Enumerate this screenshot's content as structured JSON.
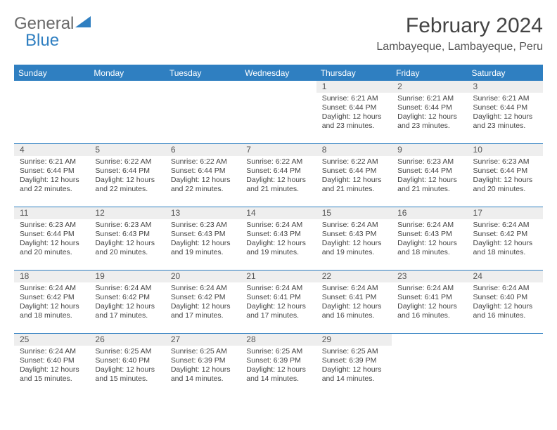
{
  "logo": {
    "part1": "General",
    "part2": "Blue"
  },
  "title": "February 2024",
  "location": "Lambayeque, Lambayeque, Peru",
  "colors": {
    "header_bg": "#2f7fc1",
    "header_text": "#ffffff",
    "daynum_bg": "#eeeeee",
    "border": "#2f7fc1",
    "text": "#444444"
  },
  "day_headers": [
    "Sunday",
    "Monday",
    "Tuesday",
    "Wednesday",
    "Thursday",
    "Friday",
    "Saturday"
  ],
  "weeks": [
    [
      {
        "n": "",
        "sr": "",
        "ss": "",
        "dl": ""
      },
      {
        "n": "",
        "sr": "",
        "ss": "",
        "dl": ""
      },
      {
        "n": "",
        "sr": "",
        "ss": "",
        "dl": ""
      },
      {
        "n": "",
        "sr": "",
        "ss": "",
        "dl": ""
      },
      {
        "n": "1",
        "sr": "Sunrise: 6:21 AM",
        "ss": "Sunset: 6:44 PM",
        "dl": "Daylight: 12 hours and 23 minutes."
      },
      {
        "n": "2",
        "sr": "Sunrise: 6:21 AM",
        "ss": "Sunset: 6:44 PM",
        "dl": "Daylight: 12 hours and 23 minutes."
      },
      {
        "n": "3",
        "sr": "Sunrise: 6:21 AM",
        "ss": "Sunset: 6:44 PM",
        "dl": "Daylight: 12 hours and 23 minutes."
      }
    ],
    [
      {
        "n": "4",
        "sr": "Sunrise: 6:21 AM",
        "ss": "Sunset: 6:44 PM",
        "dl": "Daylight: 12 hours and 22 minutes."
      },
      {
        "n": "5",
        "sr": "Sunrise: 6:22 AM",
        "ss": "Sunset: 6:44 PM",
        "dl": "Daylight: 12 hours and 22 minutes."
      },
      {
        "n": "6",
        "sr": "Sunrise: 6:22 AM",
        "ss": "Sunset: 6:44 PM",
        "dl": "Daylight: 12 hours and 22 minutes."
      },
      {
        "n": "7",
        "sr": "Sunrise: 6:22 AM",
        "ss": "Sunset: 6:44 PM",
        "dl": "Daylight: 12 hours and 21 minutes."
      },
      {
        "n": "8",
        "sr": "Sunrise: 6:22 AM",
        "ss": "Sunset: 6:44 PM",
        "dl": "Daylight: 12 hours and 21 minutes."
      },
      {
        "n": "9",
        "sr": "Sunrise: 6:23 AM",
        "ss": "Sunset: 6:44 PM",
        "dl": "Daylight: 12 hours and 21 minutes."
      },
      {
        "n": "10",
        "sr": "Sunrise: 6:23 AM",
        "ss": "Sunset: 6:44 PM",
        "dl": "Daylight: 12 hours and 20 minutes."
      }
    ],
    [
      {
        "n": "11",
        "sr": "Sunrise: 6:23 AM",
        "ss": "Sunset: 6:44 PM",
        "dl": "Daylight: 12 hours and 20 minutes."
      },
      {
        "n": "12",
        "sr": "Sunrise: 6:23 AM",
        "ss": "Sunset: 6:43 PM",
        "dl": "Daylight: 12 hours and 20 minutes."
      },
      {
        "n": "13",
        "sr": "Sunrise: 6:23 AM",
        "ss": "Sunset: 6:43 PM",
        "dl": "Daylight: 12 hours and 19 minutes."
      },
      {
        "n": "14",
        "sr": "Sunrise: 6:24 AM",
        "ss": "Sunset: 6:43 PM",
        "dl": "Daylight: 12 hours and 19 minutes."
      },
      {
        "n": "15",
        "sr": "Sunrise: 6:24 AM",
        "ss": "Sunset: 6:43 PM",
        "dl": "Daylight: 12 hours and 19 minutes."
      },
      {
        "n": "16",
        "sr": "Sunrise: 6:24 AM",
        "ss": "Sunset: 6:43 PM",
        "dl": "Daylight: 12 hours and 18 minutes."
      },
      {
        "n": "17",
        "sr": "Sunrise: 6:24 AM",
        "ss": "Sunset: 6:42 PM",
        "dl": "Daylight: 12 hours and 18 minutes."
      }
    ],
    [
      {
        "n": "18",
        "sr": "Sunrise: 6:24 AM",
        "ss": "Sunset: 6:42 PM",
        "dl": "Daylight: 12 hours and 18 minutes."
      },
      {
        "n": "19",
        "sr": "Sunrise: 6:24 AM",
        "ss": "Sunset: 6:42 PM",
        "dl": "Daylight: 12 hours and 17 minutes."
      },
      {
        "n": "20",
        "sr": "Sunrise: 6:24 AM",
        "ss": "Sunset: 6:42 PM",
        "dl": "Daylight: 12 hours and 17 minutes."
      },
      {
        "n": "21",
        "sr": "Sunrise: 6:24 AM",
        "ss": "Sunset: 6:41 PM",
        "dl": "Daylight: 12 hours and 17 minutes."
      },
      {
        "n": "22",
        "sr": "Sunrise: 6:24 AM",
        "ss": "Sunset: 6:41 PM",
        "dl": "Daylight: 12 hours and 16 minutes."
      },
      {
        "n": "23",
        "sr": "Sunrise: 6:24 AM",
        "ss": "Sunset: 6:41 PM",
        "dl": "Daylight: 12 hours and 16 minutes."
      },
      {
        "n": "24",
        "sr": "Sunrise: 6:24 AM",
        "ss": "Sunset: 6:40 PM",
        "dl": "Daylight: 12 hours and 16 minutes."
      }
    ],
    [
      {
        "n": "25",
        "sr": "Sunrise: 6:24 AM",
        "ss": "Sunset: 6:40 PM",
        "dl": "Daylight: 12 hours and 15 minutes."
      },
      {
        "n": "26",
        "sr": "Sunrise: 6:25 AM",
        "ss": "Sunset: 6:40 PM",
        "dl": "Daylight: 12 hours and 15 minutes."
      },
      {
        "n": "27",
        "sr": "Sunrise: 6:25 AM",
        "ss": "Sunset: 6:39 PM",
        "dl": "Daylight: 12 hours and 14 minutes."
      },
      {
        "n": "28",
        "sr": "Sunrise: 6:25 AM",
        "ss": "Sunset: 6:39 PM",
        "dl": "Daylight: 12 hours and 14 minutes."
      },
      {
        "n": "29",
        "sr": "Sunrise: 6:25 AM",
        "ss": "Sunset: 6:39 PM",
        "dl": "Daylight: 12 hours and 14 minutes."
      },
      {
        "n": "",
        "sr": "",
        "ss": "",
        "dl": ""
      },
      {
        "n": "",
        "sr": "",
        "ss": "",
        "dl": ""
      }
    ]
  ]
}
